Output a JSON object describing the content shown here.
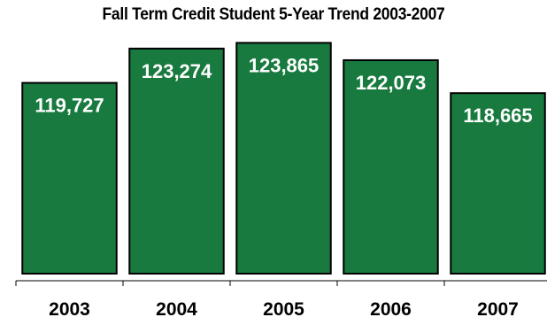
{
  "chart_data": {
    "type": "bar",
    "title": "Fall Term Credit Student 5-Year Trend 2003-2007",
    "categories": [
      "2003",
      "2004",
      "2005",
      "2006",
      "2007"
    ],
    "values": [
      119727,
      123274,
      123865,
      122073,
      118665
    ],
    "data_labels": [
      "119,727",
      "123,274",
      "123,865",
      "122,073",
      "118,665"
    ],
    "xlabel": "",
    "ylabel": "",
    "ylim": [
      100000,
      125000
    ],
    "grid": false,
    "legend": "none"
  },
  "colors": {
    "bar_fill": "#187a3f",
    "bar_stroke": "#000000",
    "label_text": "#ffffff",
    "axis": "#000000"
  }
}
